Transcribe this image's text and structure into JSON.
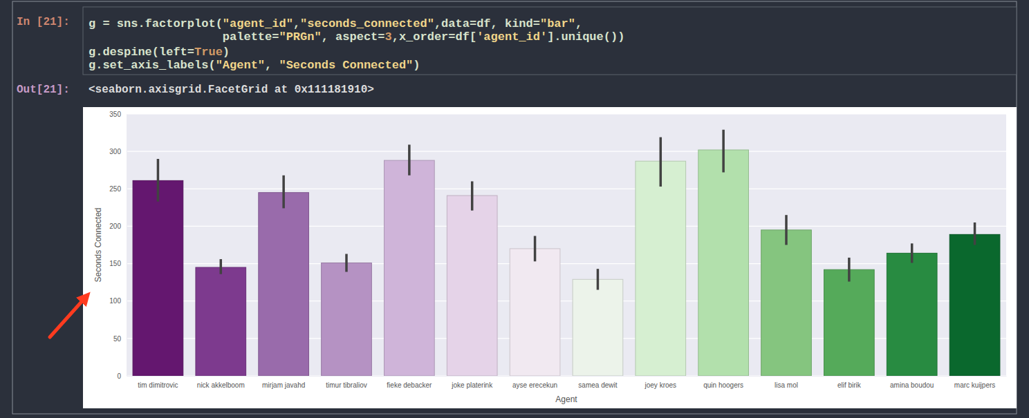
{
  "cell": {
    "in_prompt": "In [21]:",
    "code": [
      "g = sns.factorplot(\"agent_id\",\"seconds_connected\",data=df, kind=\"bar\",",
      "                   palette=\"PRGn\", aspect=3,x_order=df['agent_id'].unique())",
      "g.despine(left=True)",
      "g.set_axis_labels(\"Agent\", \"Seconds Connected\")"
    ],
    "out_prompt": "Out[21]:",
    "output": "<seaborn.axisgrid.FacetGrid at 0x111181910>"
  },
  "chart_data": {
    "type": "bar",
    "x_label": "Agent",
    "y_label": "Seconds Connected",
    "categories": [
      "tim dimitrovic",
      "nick akkelboom",
      "mirjam javahd",
      "timur tibraliov",
      "fieke debacker",
      "joke platerink",
      "ayse erecekun",
      "samea dewit",
      "joey kroes",
      "quin hoogers",
      "lisa mol",
      "elif birik",
      "amina boudou",
      "marc kuijpers"
    ],
    "values": [
      261,
      145,
      245,
      151,
      288,
      241,
      170,
      129,
      287,
      302,
      195,
      142,
      164,
      189
    ],
    "ci_low": [
      233,
      136,
      224,
      139,
      268,
      221,
      153,
      115,
      253,
      272,
      175,
      126,
      151,
      175
    ],
    "ci_high": [
      290,
      156,
      268,
      163,
      309,
      260,
      187,
      143,
      319,
      329,
      215,
      158,
      177,
      205
    ],
    "colors": [
      "#64176f",
      "#7d3a8e",
      "#996bab",
      "#b592c3",
      "#cfb4d9",
      "#e5d3e8",
      "#f1e9f1",
      "#ecf3ea",
      "#d6efd1",
      "#b2e0ac",
      "#85c57f",
      "#55aa5a",
      "#288b41",
      "#0a682d"
    ],
    "ylim": [
      0,
      350
    ],
    "yticks": [
      0,
      50,
      100,
      150,
      200,
      250,
      300,
      350
    ],
    "grid": true
  }
}
